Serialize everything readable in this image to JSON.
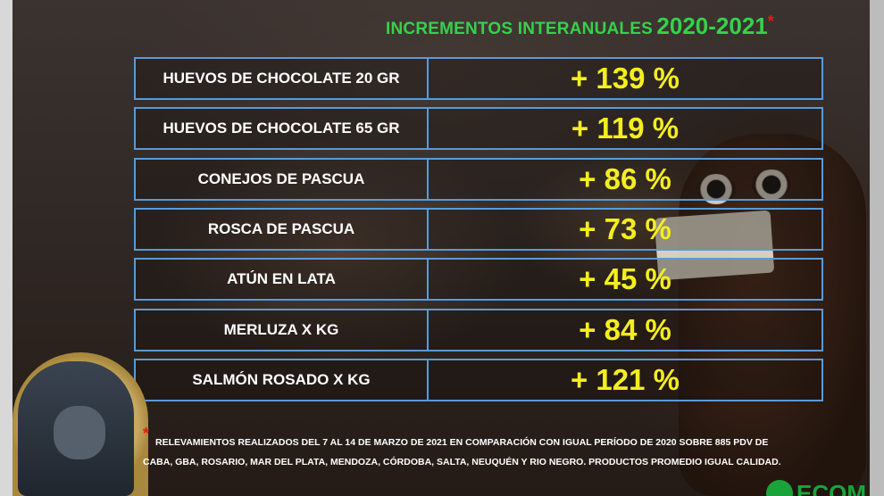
{
  "title": {
    "main": "INCREMENTOS INTERANUALES",
    "years": "2020-2021",
    "marker": "*"
  },
  "rows": [
    {
      "label": "HUEVOS DE CHOCOLATE 20 GR",
      "value": "+ 139 %"
    },
    {
      "label": "HUEVOS DE CHOCOLATE 65 GR",
      "value": "+ 119 %"
    },
    {
      "label": "CONEJOS DE PASCUA",
      "value": "+ 86 %"
    },
    {
      "label": "ROSCA DE PASCUA",
      "value": "+ 73 %"
    },
    {
      "label": "ATÚN EN LATA",
      "value": "+ 45 %"
    },
    {
      "label": "MERLUZA X KG",
      "value": "+ 84 %"
    },
    {
      "label": "SALMÓN ROSADO X KG",
      "value": "+ 121 %"
    }
  ],
  "footnote": {
    "marker": "*",
    "line1": "RELEVAMIENTOS REALIZADOS DEL 7 AL 14 DE MARZO DE 2021 EN COMPARACIÓN CON IGUAL PERÍODO DE 2020 SOBRE 885 PDV DE",
    "line2": "CABA, GBA, ROSARIO, MAR DEL PLATA, MENDOZA, CÓRDOBA, SALTA, NEUQUÉN Y RIO NEGRO. PRODUCTOS PROMEDIO IGUAL CALIDAD."
  },
  "logo": {
    "text": "ECOM",
    "icon": "logo-icon"
  },
  "colors": {
    "title_green": "#35d24a",
    "value_yellow": "#f5ee1f",
    "border_blue": "#5a9ad8",
    "marker_red": "#e31b1b"
  }
}
